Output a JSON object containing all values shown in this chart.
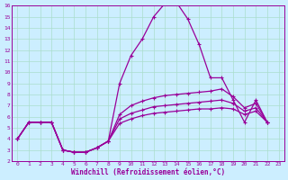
{
  "xlabel": "Windchill (Refroidissement éolien,°C)",
  "bg_color": "#cceeff",
  "grid_color": "#aaddcc",
  "line_color": "#990099",
  "xlim": [
    -0.5,
    23.5
  ],
  "ylim": [
    2,
    16
  ],
  "yticks": [
    2,
    3,
    4,
    5,
    6,
    7,
    8,
    9,
    10,
    11,
    12,
    13,
    14,
    15,
    16
  ],
  "xticks": [
    0,
    1,
    2,
    3,
    4,
    5,
    6,
    7,
    8,
    9,
    10,
    11,
    12,
    13,
    14,
    15,
    16,
    17,
    18,
    19,
    20,
    21,
    22,
    23
  ],
  "lines": [
    {
      "x": [
        0,
        1,
        2,
        3,
        4,
        5,
        6,
        7,
        8,
        9,
        10,
        11,
        12,
        13,
        14,
        15,
        16,
        17,
        18,
        19,
        20,
        21,
        22,
        23
      ],
      "y": [
        4.0,
        5.5,
        5.5,
        5.5,
        3.0,
        2.8,
        2.8,
        3.2,
        3.8,
        9.0,
        11.5,
        13.0,
        15.0,
        16.2,
        16.3,
        14.8,
        12.5,
        9.5,
        9.5,
        7.5,
        5.5,
        7.5,
        5.5,
        null
      ]
    },
    {
      "x": [
        0,
        1,
        2,
        3,
        4,
        5,
        6,
        7,
        8,
        9,
        10,
        11,
        12,
        13,
        14,
        15,
        16,
        17,
        18,
        19,
        20,
        21,
        22,
        23
      ],
      "y": [
        4.0,
        5.5,
        5.5,
        5.5,
        3.0,
        2.8,
        2.8,
        3.2,
        3.8,
        6.2,
        7.0,
        7.4,
        7.7,
        7.9,
        8.0,
        8.1,
        8.2,
        8.3,
        8.5,
        7.8,
        6.8,
        7.2,
        5.5,
        null
      ]
    },
    {
      "x": [
        0,
        1,
        2,
        3,
        4,
        5,
        6,
        7,
        8,
        9,
        10,
        11,
        12,
        13,
        14,
        15,
        16,
        17,
        18,
        19,
        20,
        21,
        22,
        23
      ],
      "y": [
        4.0,
        5.5,
        5.5,
        5.5,
        3.0,
        2.8,
        2.8,
        3.2,
        3.8,
        5.8,
        6.3,
        6.6,
        6.9,
        7.0,
        7.1,
        7.2,
        7.3,
        7.4,
        7.5,
        7.2,
        6.5,
        6.8,
        5.5,
        null
      ]
    },
    {
      "x": [
        0,
        1,
        2,
        3,
        4,
        5,
        6,
        7,
        8,
        9,
        10,
        11,
        12,
        13,
        14,
        15,
        16,
        17,
        18,
        19,
        20,
        21,
        22,
        23
      ],
      "y": [
        4.0,
        5.5,
        5.5,
        5.5,
        3.0,
        2.8,
        2.8,
        3.2,
        3.8,
        5.4,
        5.8,
        6.1,
        6.3,
        6.4,
        6.5,
        6.6,
        6.7,
        6.7,
        6.8,
        6.7,
        6.2,
        6.5,
        5.5,
        null
      ]
    }
  ]
}
